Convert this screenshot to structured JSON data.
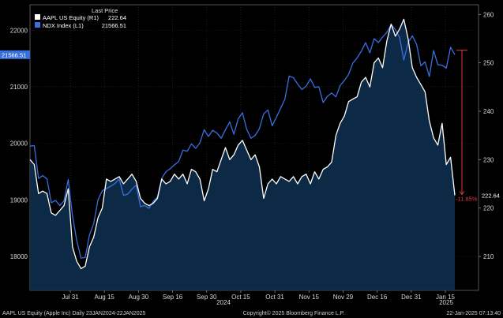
{
  "legend": {
    "header": "Last Price",
    "items": [
      {
        "label": "AAPL US Equity  (R1)",
        "value": "222.64",
        "color": "#ffffff"
      },
      {
        "label": "NDX Index  (L1)",
        "value": "21566.51",
        "color": "#3a6fe0"
      }
    ]
  },
  "badges": {
    "ndx_last": "21566.51",
    "aapl_last": "222.64",
    "change": "-11.85%"
  },
  "footer": {
    "left": "AAPL US Equity (Apple Inc)  Daily 23JAN2024-22JAN2025",
    "center": "Copyright© 2025 Bloomberg Finance L.P.",
    "right": "22-Jan-2025 07:13:40"
  },
  "chart_data": {
    "type": "line",
    "x_ticks": [
      "Jul 31",
      "Aug 15",
      "Aug 30",
      "Sep 16",
      "Sep 30",
      "Oct 15",
      "Oct 31",
      "Nov 15",
      "Nov 29",
      "Dec 16",
      "Dec 31",
      "Jan 15"
    ],
    "x_year_labels": [
      "2024",
      "2025"
    ],
    "y_left": {
      "ticks": [
        18000,
        19000,
        20000,
        21000,
        22000
      ],
      "range": [
        17400,
        22450
      ]
    },
    "y_right": {
      "ticks": [
        210,
        220,
        230,
        240,
        250,
        260
      ],
      "range": [
        203.0,
        262.0
      ]
    },
    "series": [
      {
        "name": "NDX Index",
        "axis": "left",
        "color": "#3a6fe0",
        "values": [
          19950,
          19960,
          19380,
          19430,
          19370,
          18950,
          18990,
          18900,
          18980,
          19360,
          18720,
          18280,
          17970,
          17980,
          18380,
          18580,
          19000,
          19160,
          19200,
          19240,
          19290,
          19370,
          19080,
          19100,
          19190,
          19260,
          18880,
          18900,
          18850,
          18970,
          19050,
          19380,
          19500,
          19550,
          19620,
          19680,
          19880,
          19860,
          19990,
          19910,
          20010,
          20240,
          20120,
          20230,
          20180,
          20090,
          20240,
          20380,
          20160,
          20430,
          20540,
          20250,
          20090,
          20140,
          20260,
          20520,
          20590,
          20310,
          20460,
          20620,
          20780,
          21190,
          21160,
          21050,
          20950,
          21010,
          21140,
          20990,
          21000,
          20720,
          20830,
          20890,
          20820,
          21020,
          21110,
          21220,
          21420,
          21510,
          21630,
          21780,
          21600,
          21850,
          21780,
          21880,
          21960,
          22100,
          22010,
          21870,
          21470,
          21780,
          21900,
          21750,
          21370,
          21440,
          21180,
          21640,
          21390,
          21380,
          21330,
          21700,
          21566.51
        ]
      },
      {
        "name": "AAPL US Equity",
        "axis": "right",
        "color": "#ffffff",
        "values": [
          230.0,
          229.0,
          223.0,
          223.5,
          223.0,
          219.0,
          218.5,
          219.5,
          220.5,
          224.0,
          212.0,
          209.0,
          207.5,
          208.0,
          212.0,
          214.0,
          218.0,
          220.0,
          226.0,
          225.5,
          226.0,
          226.5,
          225.0,
          226.0,
          227.0,
          225.5,
          222.0,
          221.0,
          220.5,
          221.0,
          222.0,
          226.0,
          225.0,
          225.5,
          227.0,
          226.0,
          227.0,
          225.0,
          228.0,
          227.5,
          226.0,
          221.5,
          224.0,
          228.0,
          227.5,
          230.0,
          232.5,
          230.0,
          231.0,
          233.0,
          234.0,
          232.0,
          230.0,
          231.0,
          228.5,
          222.0,
          225.0,
          226.0,
          225.0,
          226.5,
          226.0,
          225.5,
          226.5,
          225.0,
          226.5,
          227.0,
          225.0,
          227.5,
          226.0,
          228.0,
          228.5,
          229.5,
          235.0,
          237.5,
          239.0,
          242.0,
          242.5,
          243.0,
          246.0,
          247.0,
          245.0,
          250.0,
          251.0,
          249.0,
          254.5,
          258.0,
          255.5,
          257.0,
          259.0,
          255.0,
          249.0,
          247.0,
          245.5,
          244.0,
          238.0,
          234.5,
          233.0,
          237.5,
          229.0,
          230.5,
          222.64
        ]
      }
    ],
    "annotation": {
      "text": "-11.85%",
      "from_value": 252.6,
      "to_value": 222.64,
      "axis": "right"
    }
  }
}
